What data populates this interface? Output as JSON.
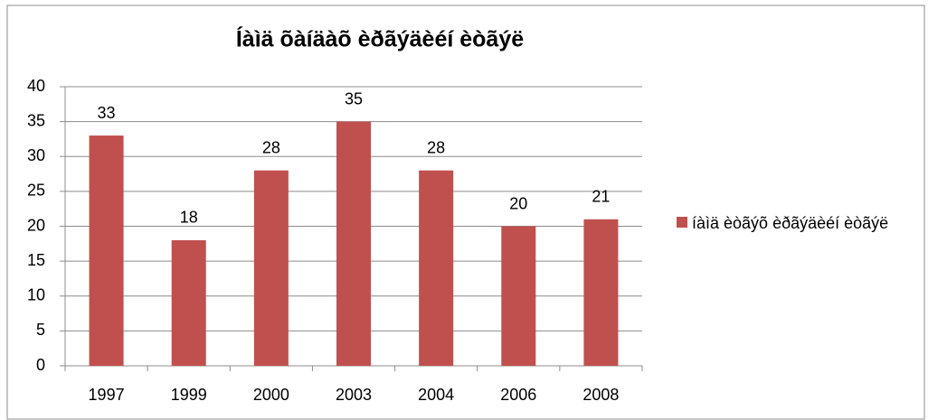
{
  "chart_data": {
    "type": "bar",
    "title": "Íàìä õàíäàõ èðãýäèéí èòãýë",
    "categories": [
      "1997",
      "1999",
      "2000",
      "2003",
      "2004",
      "2006",
      "2008"
    ],
    "series": [
      {
        "name": "íàìä èòãýõ èðãýäèéí èòãýë",
        "color": "#c0504d",
        "values": [
          33,
          18,
          28,
          35,
          28,
          20,
          21
        ]
      }
    ],
    "ylim": [
      0,
      40
    ],
    "yticks": [
      0,
      5,
      10,
      15,
      20,
      25,
      30,
      35,
      40
    ],
    "grid": true,
    "legend": "right",
    "data_labels": true
  }
}
